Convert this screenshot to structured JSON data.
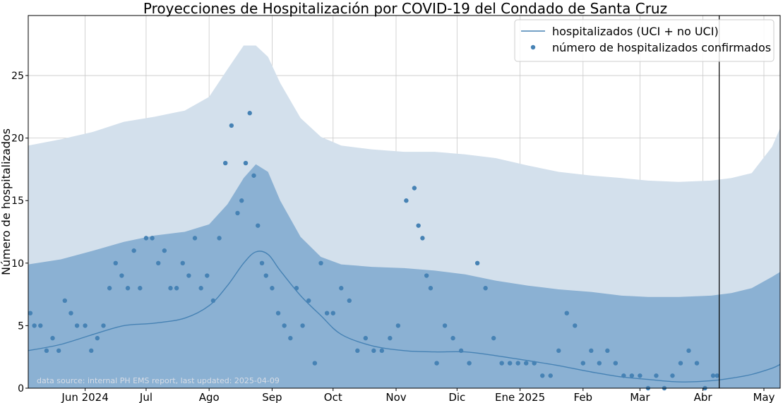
{
  "chart_data": {
    "type": "line",
    "title": "Proyecciones de Hospitalización por COVID-19 del Condado de Santa Cruz",
    "ylabel": "Número de hospitalizados",
    "xlabel": "",
    "ylim": [
      0,
      29.8
    ],
    "xlim": [
      "2024-05-04",
      "2025-05-09"
    ],
    "yticks": [
      0,
      5,
      10,
      15,
      20,
      25
    ],
    "grid": true,
    "legend_position": "top-right",
    "x_ticks": [
      {
        "date": "2024-06-01",
        "label": "Jun 2024"
      },
      {
        "date": "2024-07-01",
        "label": "Jul"
      },
      {
        "date": "2024-08-01",
        "label": "Ago"
      },
      {
        "date": "2024-09-01",
        "label": "Sep"
      },
      {
        "date": "2024-10-01",
        "label": "Oct"
      },
      {
        "date": "2024-11-01",
        "label": "Nov"
      },
      {
        "date": "2024-12-01",
        "label": "Dic"
      },
      {
        "date": "2025-01-01",
        "label": "Ene 2025"
      },
      {
        "date": "2025-02-01",
        "label": "Feb"
      },
      {
        "date": "2025-03-01",
        "label": "Mar"
      },
      {
        "date": "2025-04-01",
        "label": "Abr"
      },
      {
        "date": "2025-05-01",
        "label": "May"
      }
    ],
    "vline_date": "2025-04-09",
    "annotation": "data source: internal PH EMS report, last updated: 2025-04-09",
    "colors": {
      "line": "#4682b4",
      "points": "#4682b4",
      "band_outer": "#d3e0ec",
      "band_inner": "#8bb1d3",
      "vline": "#000000"
    },
    "series": [
      {
        "name": "hospitalizados (UCI + no UCI)",
        "kind": "line",
        "x": [
          "2024-05-04",
          "2024-05-20",
          "2024-06-05",
          "2024-06-20",
          "2024-07-05",
          "2024-07-20",
          "2024-08-01",
          "2024-08-10",
          "2024-08-18",
          "2024-08-24",
          "2024-08-30",
          "2024-09-05",
          "2024-09-15",
          "2024-09-25",
          "2024-10-05",
          "2024-10-20",
          "2024-11-05",
          "2024-11-20",
          "2024-12-05",
          "2024-12-20",
          "2025-01-05",
          "2025-01-20",
          "2025-02-05",
          "2025-02-20",
          "2025-03-05",
          "2025-03-20",
          "2025-04-05",
          "2025-04-15",
          "2025-04-25",
          "2025-05-05",
          "2025-05-09"
        ],
        "y": [
          3.0,
          3.5,
          4.3,
          5.0,
          5.2,
          5.6,
          6.6,
          8.2,
          10.0,
          10.9,
          10.7,
          9.4,
          7.4,
          5.8,
          4.3,
          3.4,
          3.0,
          2.9,
          2.9,
          2.6,
          2.2,
          1.8,
          1.3,
          0.9,
          0.7,
          0.5,
          0.6,
          0.8,
          1.1,
          1.6,
          1.9
        ]
      },
      {
        "name": "número de hospitalizados confirmados",
        "kind": "scatter",
        "x": [
          "2024-05-05",
          "2024-05-07",
          "2024-05-10",
          "2024-05-13",
          "2024-05-16",
          "2024-05-19",
          "2024-05-22",
          "2024-05-25",
          "2024-05-28",
          "2024-06-01",
          "2024-06-04",
          "2024-06-07",
          "2024-06-10",
          "2024-06-13",
          "2024-06-16",
          "2024-06-19",
          "2024-06-22",
          "2024-06-25",
          "2024-06-28",
          "2024-07-01",
          "2024-07-04",
          "2024-07-07",
          "2024-07-10",
          "2024-07-13",
          "2024-07-16",
          "2024-07-19",
          "2024-07-22",
          "2024-07-25",
          "2024-07-28",
          "2024-07-31",
          "2024-08-03",
          "2024-08-06",
          "2024-08-09",
          "2024-08-12",
          "2024-08-15",
          "2024-08-17",
          "2024-08-19",
          "2024-08-21",
          "2024-08-23",
          "2024-08-25",
          "2024-08-27",
          "2024-08-29",
          "2024-09-01",
          "2024-09-04",
          "2024-09-07",
          "2024-09-10",
          "2024-09-13",
          "2024-09-16",
          "2024-09-19",
          "2024-09-22",
          "2024-09-25",
          "2024-09-28",
          "2024-10-01",
          "2024-10-05",
          "2024-10-09",
          "2024-10-13",
          "2024-10-17",
          "2024-10-21",
          "2024-10-25",
          "2024-10-29",
          "2024-11-02",
          "2024-11-06",
          "2024-11-10",
          "2024-11-12",
          "2024-11-14",
          "2024-11-16",
          "2024-11-18",
          "2024-11-21",
          "2024-11-25",
          "2024-11-29",
          "2024-12-03",
          "2024-12-07",
          "2024-12-11",
          "2024-12-15",
          "2024-12-19",
          "2024-12-23",
          "2024-12-27",
          "2024-12-31",
          "2025-01-04",
          "2025-01-08",
          "2025-01-12",
          "2025-01-16",
          "2025-01-20",
          "2025-01-24",
          "2025-01-28",
          "2025-02-01",
          "2025-02-05",
          "2025-02-09",
          "2025-02-13",
          "2025-02-17",
          "2025-02-21",
          "2025-02-25",
          "2025-03-01",
          "2025-03-05",
          "2025-03-09",
          "2025-03-13",
          "2025-03-17",
          "2025-03-21",
          "2025-03-25",
          "2025-03-29",
          "2025-04-02",
          "2025-04-06",
          "2025-04-08"
        ],
        "y": [
          6,
          5,
          5,
          3,
          4,
          3,
          7,
          6,
          5,
          5,
          3,
          4,
          5,
          8,
          10,
          9,
          8,
          11,
          8,
          12,
          12,
          10,
          11,
          8,
          8,
          10,
          9,
          12,
          8,
          9,
          7,
          12,
          18,
          21,
          14,
          15,
          18,
          22,
          17,
          13,
          10,
          9,
          8,
          6,
          5,
          4,
          8,
          5,
          7,
          2,
          10,
          6,
          6,
          8,
          7,
          3,
          4,
          3,
          3,
          4,
          5,
          15,
          16,
          13,
          12,
          9,
          8,
          2,
          5,
          4,
          3,
          2,
          10,
          8,
          4,
          2,
          2,
          2,
          2,
          2,
          1,
          1,
          3,
          6,
          5,
          2,
          3,
          2,
          3,
          2,
          1,
          1,
          1,
          0,
          1,
          0,
          1,
          2,
          3,
          2,
          0,
          1,
          1
        ]
      }
    ],
    "band_outer": {
      "x": [
        "2024-05-04",
        "2024-05-20",
        "2024-06-05",
        "2024-06-20",
        "2024-07-05",
        "2024-07-20",
        "2024-08-01",
        "2024-08-10",
        "2024-08-18",
        "2024-08-24",
        "2024-08-30",
        "2024-09-05",
        "2024-09-15",
        "2024-09-25",
        "2024-10-05",
        "2024-10-20",
        "2024-11-05",
        "2024-11-20",
        "2024-12-05",
        "2024-12-20",
        "2025-01-05",
        "2025-01-20",
        "2025-02-05",
        "2025-02-20",
        "2025-03-05",
        "2025-03-20",
        "2025-04-05",
        "2025-04-15",
        "2025-04-25",
        "2025-05-05",
        "2025-05-09"
      ],
      "upper": [
        19.4,
        19.9,
        20.5,
        21.3,
        21.7,
        22.2,
        23.3,
        25.5,
        27.4,
        27.4,
        26.5,
        24.4,
        21.6,
        20.1,
        19.4,
        19.1,
        18.9,
        18.9,
        18.7,
        18.4,
        17.8,
        17.3,
        17.0,
        16.8,
        16.6,
        16.5,
        16.6,
        16.8,
        17.2,
        19.3,
        20.8
      ],
      "lower": [
        0,
        0,
        0,
        0,
        0,
        0,
        0,
        0.5,
        2.7,
        3.8,
        3.4,
        2.1,
        0.3,
        0,
        0,
        0,
        0,
        0,
        0,
        0,
        0,
        0,
        0,
        0,
        0,
        0,
        0,
        0,
        0,
        0,
        0
      ]
    },
    "band_inner": {
      "x": [
        "2024-05-04",
        "2024-05-20",
        "2024-06-05",
        "2024-06-20",
        "2024-07-05",
        "2024-07-20",
        "2024-08-01",
        "2024-08-10",
        "2024-08-18",
        "2024-08-24",
        "2024-08-30",
        "2024-09-05",
        "2024-09-15",
        "2024-09-25",
        "2024-10-05",
        "2024-10-20",
        "2024-11-05",
        "2024-11-20",
        "2024-12-05",
        "2024-12-20",
        "2025-01-05",
        "2025-01-20",
        "2025-02-05",
        "2025-02-20",
        "2025-03-05",
        "2025-03-20",
        "2025-04-05",
        "2025-04-15",
        "2025-04-25",
        "2025-05-05",
        "2025-05-09"
      ],
      "upper": [
        9.9,
        10.3,
        11.0,
        11.7,
        12.2,
        12.5,
        13.1,
        14.7,
        16.8,
        17.9,
        17.3,
        15.0,
        12.1,
        10.5,
        9.9,
        9.7,
        9.6,
        9.4,
        9.1,
        8.6,
        8.2,
        7.9,
        7.7,
        7.4,
        7.3,
        7.3,
        7.4,
        7.6,
        8.0,
        8.9,
        9.3
      ],
      "lower": [
        0,
        0,
        0,
        0,
        0,
        0,
        0,
        0,
        0,
        0,
        0,
        0,
        0,
        0,
        0,
        0,
        0,
        0,
        0,
        0,
        0,
        0,
        0,
        0,
        0,
        0,
        0,
        0,
        0,
        0,
        0
      ]
    }
  }
}
